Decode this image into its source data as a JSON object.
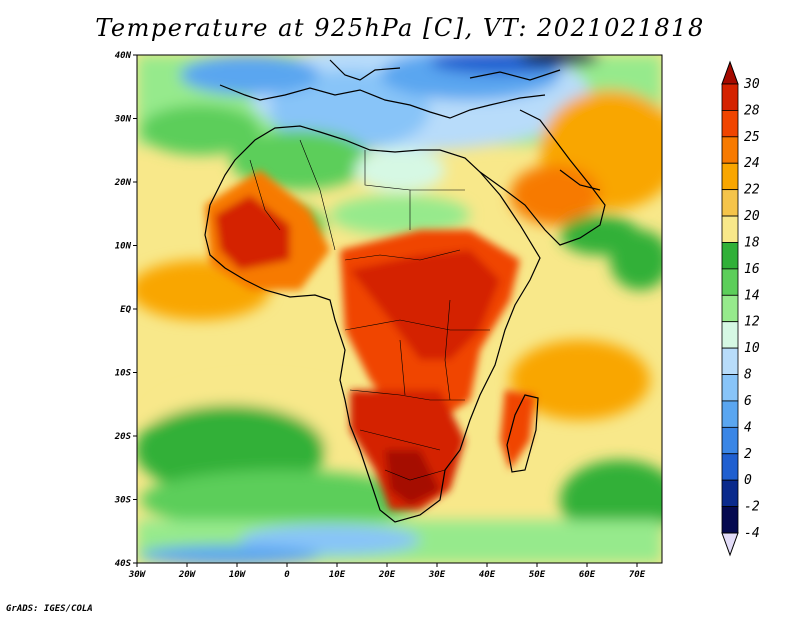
{
  "title": "Temperature at 925hPa [C], VT: 2021021818",
  "footer": "GrADS: IGES/COLA",
  "lat_labels": [
    "40N",
    "30N",
    "20N",
    "10N",
    "EQ",
    "10S",
    "20S",
    "30S",
    "40S"
  ],
  "lon_labels": [
    "30W",
    "20W",
    "10W",
    "0",
    "10E",
    "20E",
    "30E",
    "40E",
    "50E",
    "60E",
    "70E"
  ],
  "colorbar": {
    "labels": [
      "30",
      "28",
      "25",
      "24",
      "22",
      "20",
      "18",
      "16",
      "14",
      "12",
      "10",
      "8",
      "6",
      "4",
      "2",
      "0",
      "-2",
      "-4"
    ],
    "colors": [
      "#a50a00",
      "#d42200",
      "#f04500",
      "#f77a00",
      "#f9a600",
      "#f5c44a",
      "#f8e88a",
      "#30b038",
      "#5cce5a",
      "#96ea8c",
      "#d6f8e4",
      "#b8dcfa",
      "#88c4f8",
      "#5aa6f0",
      "#3a86e6",
      "#1f5fd0",
      "#0a2a8c",
      "#050a50",
      "#e2dcf8"
    ]
  }
}
